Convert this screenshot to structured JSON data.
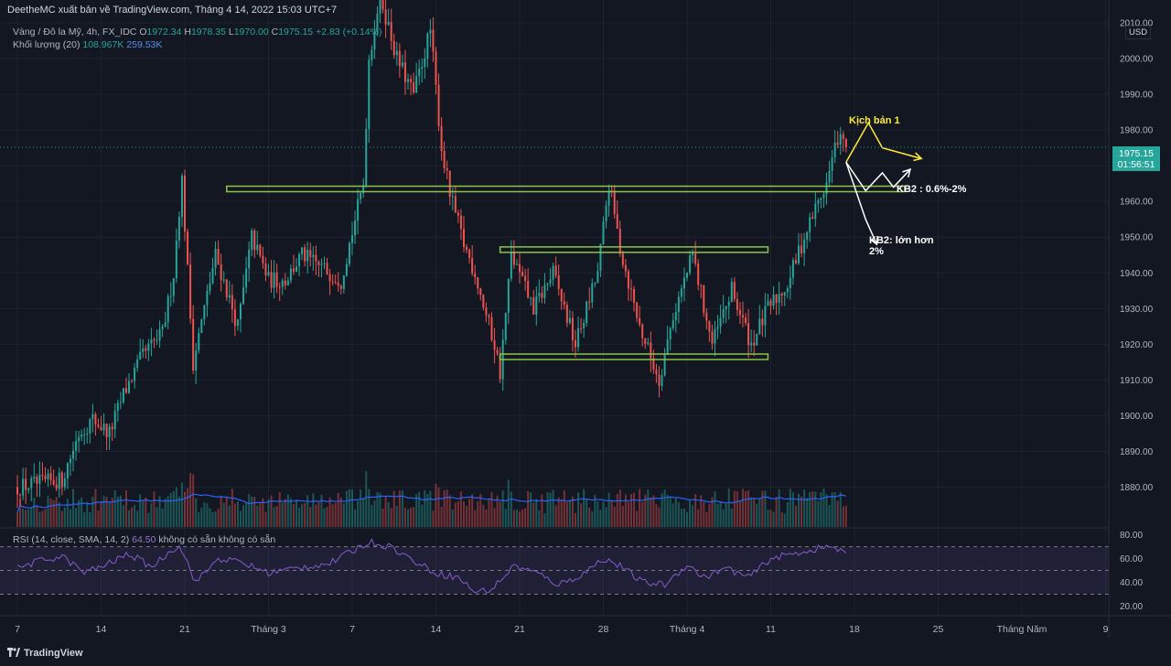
{
  "header": {
    "publisher": "DeetheMC xuất bản về TradingView.com, Tháng 4 14, 2022 15:03 UTC+7"
  },
  "legend": {
    "symbol": "Vàng / Đô la Mỹ, 4h, FX_IDC",
    "o_label": "O",
    "o": "1972.34",
    "h_label": "H",
    "h": "1978.35",
    "l_label": "L",
    "l": "1970.00",
    "c_label": "C",
    "c": "1975.15",
    "change": "+2.83 (+0.14%)",
    "volume_label": "Khối lượng (20)",
    "volume_value": "108.967K",
    "volume_ma": "259.53K"
  },
  "rsi_legend": {
    "label": "RSI (14, close, SMA, 14, 2)",
    "value": "64.50",
    "na1": "không có sẵn",
    "na2": "không có sẵn"
  },
  "price_tag": {
    "price": "1975.15",
    "countdown": "01:56:51"
  },
  "currency": "USD",
  "annotations": {
    "kb1": "Kịch bản 1",
    "kb2a": "KB2 : 0.6%-2%",
    "kb2b_line1": "KB2: lớn hơn",
    "kb2b_line2": "2%"
  },
  "footer": {
    "brand": "TradingView"
  },
  "colors": {
    "background": "#131722",
    "up": "#26a69a",
    "down": "#ef5350",
    "zone": "#8bc34a",
    "kb1": "#ffeb3b",
    "rsi_line": "#7e57c2",
    "vol_ma": "#2962ff"
  },
  "chart_data": {
    "type": "candlestick",
    "y_axis": {
      "range": [
        1875,
        2010
      ],
      "ticks": [
        1880,
        1890,
        1900,
        1910,
        1920,
        1930,
        1940,
        1950,
        1960,
        1970,
        1980,
        1990,
        2000,
        2010
      ],
      "tick_labels": [
        "1880.00",
        "1890.00",
        "1900.00",
        "1910.00",
        "1920.00",
        "1930.00",
        "1940.00",
        "1950.00",
        "1960.00",
        "1970.00",
        "1980.00",
        "1990.00",
        "2000.00",
        "2010.00"
      ]
    },
    "x_axis": {
      "labels": [
        "7",
        "14",
        "21",
        "Tháng 3",
        "7",
        "14",
        "21",
        "28",
        "Tháng 4",
        "11",
        "18",
        "25",
        "Tháng Năm",
        "9"
      ],
      "label_bar_index": [
        0,
        30,
        60,
        90,
        120,
        150,
        180,
        210,
        240,
        270,
        300,
        330,
        360,
        390
      ]
    },
    "rsi_axis": {
      "range": [
        15,
        82
      ],
      "ticks": [
        20,
        40,
        60,
        80
      ],
      "tick_labels": [
        "20.00",
        "40.00",
        "60.00",
        "80.00"
      ],
      "bands": [
        30,
        50,
        70
      ]
    },
    "current_price": 1975.15,
    "zones": [
      {
        "price": 1963.5,
        "from_bar": 75,
        "to_bar": 318
      },
      {
        "price": 1946.5,
        "from_bar": 173,
        "to_bar": 269
      },
      {
        "price": 1916.5,
        "from_bar": 173,
        "to_bar": 269
      }
    ],
    "scenario_kb1": [
      [
        297,
        1971
      ],
      [
        305,
        1982
      ],
      [
        310,
        1975
      ],
      [
        324,
        1972
      ]
    ],
    "scenario_kb2": [
      [
        297,
        1971
      ],
      [
        304,
        1963
      ],
      [
        310,
        1968
      ],
      [
        314,
        1964
      ],
      [
        320,
        1969
      ]
    ],
    "scenario_kb2_down": [
      [
        297,
        1971
      ],
      [
        304,
        1955
      ],
      [
        308,
        1948
      ]
    ],
    "anchors": [
      [
        0,
        1880
      ],
      [
        16,
        1882
      ],
      [
        22,
        1895
      ],
      [
        27,
        1899
      ],
      [
        33,
        1895
      ],
      [
        38,
        1906
      ],
      [
        45,
        1917
      ],
      [
        52,
        1923
      ],
      [
        56,
        1940
      ],
      [
        58,
        1958
      ],
      [
        59,
        1966
      ],
      [
        63,
        1915
      ],
      [
        71,
        1945
      ],
      [
        79,
        1925
      ],
      [
        84,
        1950
      ],
      [
        90,
        1938
      ],
      [
        96,
        1938
      ],
      [
        102,
        1945
      ],
      [
        108,
        1942
      ],
      [
        116,
        1938
      ],
      [
        124,
        1965
      ],
      [
        126,
        2000
      ],
      [
        130,
        2018
      ],
      [
        136,
        2000
      ],
      [
        142,
        1990
      ],
      [
        148,
        2008
      ],
      [
        152,
        1975
      ],
      [
        155,
        1962
      ],
      [
        160,
        1948
      ],
      [
        164,
        1940
      ],
      [
        168,
        1928
      ],
      [
        171,
        1920
      ],
      [
        173,
        1912
      ],
      [
        177,
        1945
      ],
      [
        185,
        1930
      ],
      [
        192,
        1940
      ],
      [
        200,
        1920
      ],
      [
        208,
        1940
      ],
      [
        212,
        1965
      ],
      [
        216,
        1947
      ],
      [
        223,
        1925
      ],
      [
        230,
        1910
      ],
      [
        235,
        1928
      ],
      [
        242,
        1945
      ],
      [
        249,
        1920
      ],
      [
        256,
        1935
      ],
      [
        263,
        1920
      ],
      [
        269,
        1930
      ],
      [
        276,
        1937
      ],
      [
        282,
        1950
      ],
      [
        286,
        1958
      ],
      [
        290,
        1965
      ],
      [
        294,
        1978
      ],
      [
        297,
        1975.15
      ]
    ],
    "rsi_anchors": [
      [
        0,
        52
      ],
      [
        8,
        58
      ],
      [
        16,
        62
      ],
      [
        24,
        48
      ],
      [
        32,
        55
      ],
      [
        40,
        64
      ],
      [
        48,
        53
      ],
      [
        58,
        72
      ],
      [
        64,
        40
      ],
      [
        72,
        60
      ],
      [
        80,
        57
      ],
      [
        90,
        48
      ],
      [
        100,
        52
      ],
      [
        112,
        56
      ],
      [
        126,
        74
      ],
      [
        134,
        70
      ],
      [
        142,
        58
      ],
      [
        150,
        48
      ],
      [
        158,
        44
      ],
      [
        164,
        32
      ],
      [
        170,
        34
      ],
      [
        178,
        54
      ],
      [
        186,
        48
      ],
      [
        194,
        38
      ],
      [
        202,
        46
      ],
      [
        210,
        60
      ],
      [
        216,
        54
      ],
      [
        224,
        40
      ],
      [
        232,
        38
      ],
      [
        240,
        55
      ],
      [
        246,
        44
      ],
      [
        254,
        52
      ],
      [
        262,
        44
      ],
      [
        270,
        60
      ],
      [
        278,
        64
      ],
      [
        286,
        68
      ],
      [
        292,
        70
      ],
      [
        297,
        64.5
      ]
    ]
  }
}
